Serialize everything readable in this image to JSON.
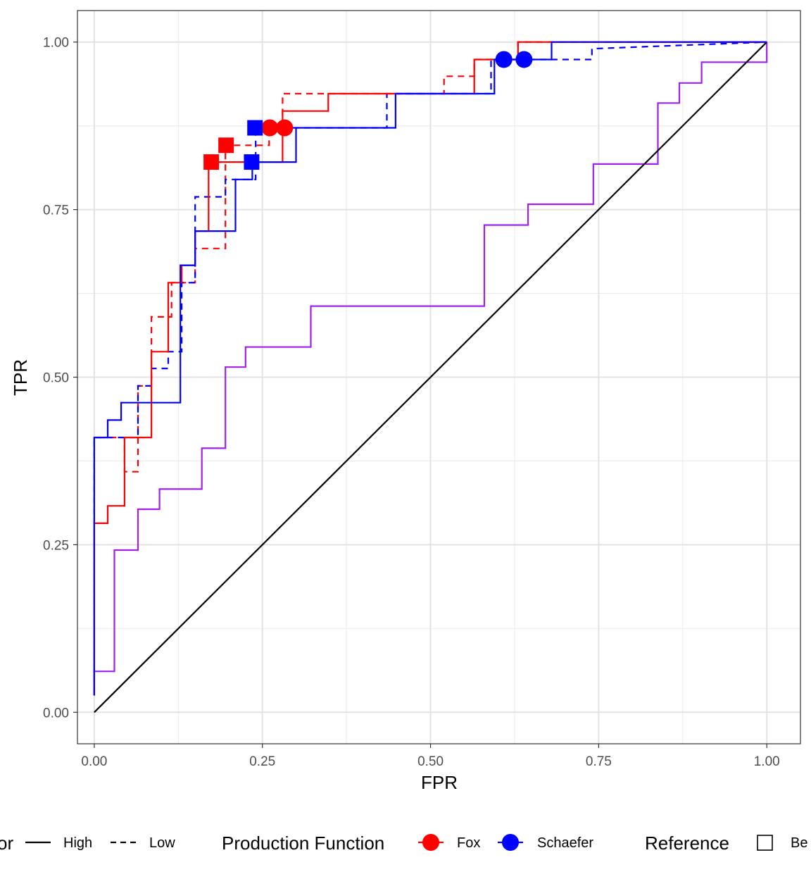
{
  "chart_data": {
    "type": "line",
    "xlabel": "FPR",
    "ylabel": "TPR",
    "xlim": [
      -0.025,
      1.05
    ],
    "ylim": [
      -0.047,
      1.047
    ],
    "xticks": [
      0,
      0.25,
      0.5,
      0.75,
      1
    ],
    "xtick_labels": [
      "0.00",
      "0.25",
      "0.50",
      "0.75",
      "1.00"
    ],
    "yticks": [
      0,
      0.25,
      0.5,
      0.75,
      1
    ],
    "ytick_labels": [
      "0.00",
      "0.25",
      "0.50",
      "0.75",
      "1.00"
    ],
    "grid": true,
    "legend_position": "bottom",
    "colors": {
      "fox": "#ff0000",
      "schaefer": "#0000ff",
      "reference": "#a020f0",
      "diagonal": "#000000"
    },
    "series": [
      {
        "function": "Fox",
        "level": "High",
        "linetype": "solid",
        "color": "#ff0000",
        "x": [
          0,
          0,
          0.02,
          0.02,
          0.045,
          0.045,
          0.085,
          0.085,
          0.11,
          0.11,
          0.13,
          0.13,
          0.15,
          0.15,
          0.17,
          0.17,
          0.28,
          0.28,
          0.348,
          0.348,
          0.565,
          0.565,
          0.63,
          0.63,
          1
        ],
        "y": [
          0.03,
          0.282,
          0.282,
          0.308,
          0.308,
          0.41,
          0.41,
          0.538,
          0.538,
          0.641,
          0.641,
          0.667,
          0.667,
          0.718,
          0.718,
          0.821,
          0.821,
          0.897,
          0.897,
          0.923,
          0.923,
          0.974,
          0.974,
          1,
          1
        ]
      },
      {
        "function": "Fox",
        "level": "Low",
        "linetype": "dashed",
        "color": "#ff0000",
        "x": [
          0,
          0,
          0.045,
          0.045,
          0.065,
          0.065,
          0.085,
          0.085,
          0.115,
          0.115,
          0.13,
          0.13,
          0.15,
          0.15,
          0.195,
          0.195,
          0.26,
          0.26,
          0.28,
          0.28,
          0.52,
          0.52,
          0.565,
          0.565,
          0.63,
          0.63,
          1
        ],
        "y": [
          0.03,
          0.41,
          0.41,
          0.359,
          0.359,
          0.487,
          0.487,
          0.59,
          0.59,
          0.641,
          0.641,
          0.641,
          0.641,
          0.692,
          0.692,
          0.846,
          0.846,
          0.872,
          0.872,
          0.923,
          0.923,
          0.949,
          0.949,
          0.974,
          0.974,
          1,
          1
        ]
      },
      {
        "function": "Schaefer",
        "level": "High",
        "linetype": "solid",
        "color": "#0000ff",
        "x": [
          0,
          0,
          0.02,
          0.02,
          0.04,
          0.04,
          0.128,
          0.128,
          0.15,
          0.15,
          0.21,
          0.21,
          0.235,
          0.235,
          0.3,
          0.3,
          0.448,
          0.448,
          0.595,
          0.595,
          0.68,
          0.68,
          1
        ],
        "y": [
          0.025,
          0.41,
          0.41,
          0.436,
          0.436,
          0.462,
          0.462,
          0.667,
          0.667,
          0.718,
          0.718,
          0.795,
          0.795,
          0.821,
          0.821,
          0.872,
          0.872,
          0.923,
          0.923,
          0.974,
          0.974,
          1,
          1
        ]
      },
      {
        "function": "Schaefer",
        "level": "Low",
        "linetype": "dashed",
        "color": "#0000ff",
        "x": [
          0,
          0,
          0.065,
          0.065,
          0.085,
          0.085,
          0.11,
          0.11,
          0.13,
          0.13,
          0.15,
          0.15,
          0.195,
          0.195,
          0.24,
          0.24,
          0.435,
          0.435,
          0.59,
          0.59,
          0.74,
          0.74,
          1
        ],
        "y": [
          0.025,
          0.41,
          0.41,
          0.487,
          0.487,
          0.513,
          0.513,
          0.538,
          0.538,
          0.641,
          0.641,
          0.769,
          0.769,
          0.795,
          0.795,
          0.872,
          0.872,
          0.923,
          0.923,
          0.974,
          0.974,
          0.99,
          1
        ]
      },
      {
        "function": "Reference",
        "level": "",
        "linetype": "solid",
        "color": "#a020f0",
        "x": [
          0,
          0,
          0.03,
          0.03,
          0.065,
          0.065,
          0.097,
          0.097,
          0.16,
          0.16,
          0.195,
          0.195,
          0.225,
          0.225,
          0.322,
          0.322,
          0.58,
          0.58,
          0.645,
          0.645,
          0.742,
          0.742,
          0.838,
          0.838,
          0.87,
          0.87,
          0.903,
          0.903,
          0.967,
          0.967,
          1,
          1
        ],
        "y": [
          0.025,
          0.061,
          0.061,
          0.242,
          0.242,
          0.303,
          0.303,
          0.333,
          0.333,
          0.394,
          0.394,
          0.515,
          0.515,
          0.545,
          0.545,
          0.606,
          0.606,
          0.727,
          0.727,
          0.758,
          0.758,
          0.818,
          0.818,
          0.909,
          0.909,
          0.939,
          0.939,
          0.97,
          0.97,
          0.97,
          0.97,
          1
        ]
      },
      {
        "function": "Diagonal",
        "level": "",
        "linetype": "solid",
        "color": "#000000",
        "x": [
          0,
          1
        ],
        "y": [
          0,
          1
        ]
      }
    ],
    "markers": [
      {
        "function": "Fox",
        "shape": "square",
        "x": 0.174,
        "y": 0.821
      },
      {
        "function": "Fox",
        "shape": "square",
        "x": 0.196,
        "y": 0.846
      },
      {
        "function": "Fox",
        "shape": "circle",
        "x": 0.261,
        "y": 0.872
      },
      {
        "function": "Fox",
        "shape": "circle",
        "x": 0.283,
        "y": 0.872
      },
      {
        "function": "Schaefer",
        "shape": "square",
        "x": 0.239,
        "y": 0.872
      },
      {
        "function": "Schaefer",
        "shape": "square",
        "x": 0.234,
        "y": 0.821
      },
      {
        "function": "Schaefer",
        "shape": "circle",
        "x": 0.609,
        "y": 0.974
      },
      {
        "function": "Schaefer",
        "shape": "circle",
        "x": 0.639,
        "y": 0.974
      }
    ]
  },
  "legend": {
    "factor": {
      "title": "or",
      "items": [
        {
          "label": "High",
          "linetype": "solid"
        },
        {
          "label": "Low",
          "linetype": "dashed"
        }
      ]
    },
    "production_function": {
      "title": "Production Function",
      "items": [
        {
          "label": "Fox",
          "color": "#ff0000"
        },
        {
          "label": "Schaefer",
          "color": "#0000ff"
        }
      ]
    },
    "reference": {
      "title": "Reference",
      "items": [
        {
          "label": "Be",
          "shape": "open-square"
        }
      ]
    }
  }
}
